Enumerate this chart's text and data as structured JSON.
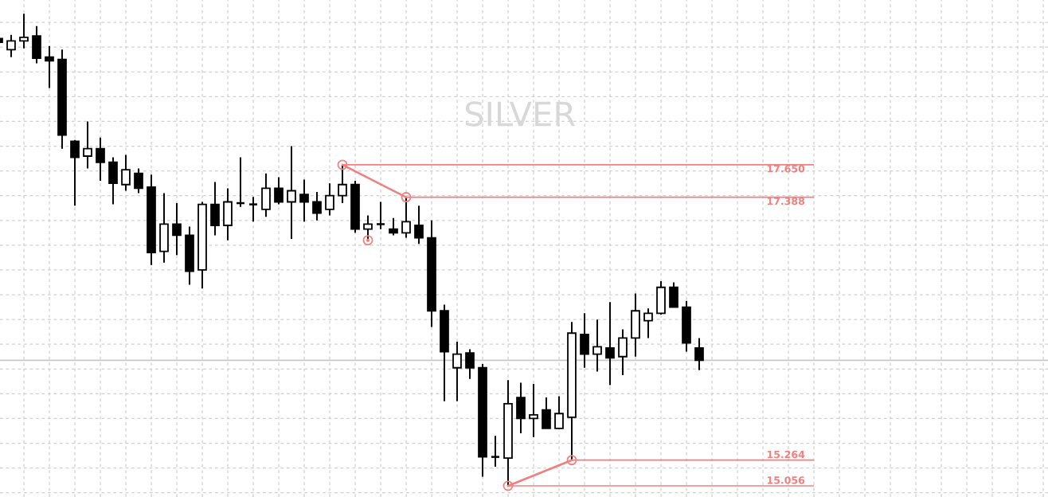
{
  "chart_data": {
    "type": "candlestick",
    "title": "SILVER",
    "categories": [
      null,
      null,
      null,
      null,
      null,
      null,
      null,
      null,
      null,
      null,
      null,
      null,
      null,
      null,
      null,
      null,
      null,
      null,
      null,
      null,
      null,
      null,
      null,
      null,
      null,
      null,
      null,
      null,
      null,
      null,
      null,
      null,
      null,
      null,
      null,
      null,
      null,
      null,
      null,
      null,
      null,
      null,
      null,
      null,
      null,
      null,
      null,
      null,
      null,
      null,
      null,
      null,
      null,
      null,
      null,
      null
    ],
    "ohlc": [
      [
        18.67,
        18.685,
        18.63,
        18.64
      ],
      [
        18.58,
        18.7,
        18.52,
        18.65
      ],
      [
        18.65,
        18.87,
        18.59,
        18.68
      ],
      [
        18.69,
        18.77,
        18.47,
        18.51
      ],
      [
        18.52,
        18.61,
        18.27,
        18.49
      ],
      [
        18.5,
        18.58,
        17.78,
        17.89
      ],
      [
        17.84,
        17.85,
        17.32,
        17.71
      ],
      [
        17.72,
        18.0,
        17.62,
        17.78
      ],
      [
        17.78,
        17.87,
        17.52,
        17.67
      ],
      [
        17.67,
        17.71,
        17.33,
        17.5
      ],
      [
        17.49,
        17.73,
        17.44,
        17.61
      ],
      [
        17.58,
        17.62,
        17.42,
        17.46
      ],
      [
        17.47,
        17.57,
        16.84,
        16.94
      ],
      [
        16.95,
        17.42,
        16.86,
        17.17
      ],
      [
        17.17,
        17.34,
        16.92,
        17.08
      ],
      [
        17.08,
        17.15,
        16.68,
        16.79
      ],
      [
        16.8,
        17.35,
        16.65,
        17.33
      ],
      [
        17.33,
        17.51,
        17.08,
        17.16
      ],
      [
        17.16,
        17.46,
        17.04,
        17.35
      ],
      [
        17.34,
        17.71,
        17.31,
        17.34
      ],
      [
        17.33,
        17.39,
        17.19,
        17.33
      ],
      [
        17.29,
        17.58,
        17.23,
        17.46
      ],
      [
        17.46,
        17.55,
        17.33,
        17.35
      ],
      [
        17.35,
        17.8,
        17.05,
        17.44
      ],
      [
        17.41,
        17.53,
        17.19,
        17.35
      ],
      [
        17.35,
        17.43,
        17.2,
        17.26
      ],
      [
        17.29,
        17.5,
        17.24,
        17.4
      ],
      [
        17.4,
        17.65,
        17.34,
        17.49
      ],
      [
        17.49,
        17.52,
        17.1,
        17.13
      ],
      [
        17.13,
        17.24,
        17.04,
        17.17
      ],
      [
        17.17,
        17.35,
        17.13,
        17.17
      ],
      [
        17.13,
        17.22,
        17.08,
        17.1
      ],
      [
        17.1,
        17.388,
        17.06,
        17.19
      ],
      [
        17.16,
        17.32,
        17.01,
        17.06
      ],
      [
        17.06,
        17.2,
        16.34,
        16.47
      ],
      [
        16.47,
        16.52,
        15.74,
        16.14
      ],
      [
        16.01,
        16.22,
        15.74,
        16.12
      ],
      [
        16.13,
        16.16,
        15.92,
        16.01
      ],
      [
        16.01,
        16.04,
        15.13,
        15.29
      ],
      [
        15.29,
        15.46,
        15.21,
        15.29
      ],
      [
        15.28,
        15.91,
        15.056,
        15.72
      ],
      [
        15.77,
        15.89,
        15.48,
        15.6
      ],
      [
        15.6,
        15.88,
        15.45,
        15.63
      ],
      [
        15.67,
        15.77,
        15.52,
        15.52
      ],
      [
        15.52,
        15.78,
        15.52,
        15.64
      ],
      [
        15.61,
        16.38,
        15.264,
        16.29
      ],
      [
        16.28,
        16.45,
        16.01,
        16.12
      ],
      [
        16.12,
        16.4,
        15.98,
        16.18
      ],
      [
        16.17,
        16.54,
        15.87,
        16.09
      ],
      [
        16.1,
        16.32,
        15.95,
        16.25
      ],
      [
        16.25,
        16.61,
        16.1,
        16.47
      ],
      [
        16.39,
        16.49,
        16.25,
        16.45
      ],
      [
        16.45,
        16.71,
        16.44,
        16.66
      ],
      [
        16.66,
        16.7,
        16.5,
        16.5
      ],
      [
        16.5,
        16.55,
        16.14,
        16.21
      ],
      [
        16.17,
        16.25,
        15.99,
        16.07
      ]
    ],
    "series": [
      {
        "type": "line",
        "color": "#f08080",
        "marker": "circle",
        "values": [
          null,
          null,
          null,
          null,
          null,
          null,
          null,
          null,
          null,
          null,
          null,
          null,
          null,
          null,
          null,
          null,
          null,
          null,
          null,
          null,
          null,
          null,
          null,
          null,
          null,
          null,
          null,
          17.65,
          null,
          null,
          null,
          null,
          17.388,
          null,
          null,
          null,
          null,
          null,
          null,
          null,
          null,
          null,
          null,
          null,
          null,
          null,
          null,
          null,
          null,
          null,
          null,
          null,
          null,
          null,
          null,
          null
        ]
      },
      {
        "type": "line",
        "color": "#f08080",
        "marker": "circle",
        "values": [
          null,
          null,
          null,
          null,
          null,
          null,
          null,
          null,
          null,
          null,
          null,
          null,
          null,
          null,
          null,
          null,
          null,
          null,
          null,
          null,
          null,
          null,
          null,
          null,
          null,
          null,
          null,
          null,
          null,
          null,
          null,
          null,
          null,
          null,
          null,
          null,
          null,
          null,
          null,
          null,
          15.056,
          null,
          null,
          null,
          null,
          15.264,
          null,
          null,
          null,
          null,
          null,
          null,
          null,
          null,
          null,
          null
        ]
      },
      {
        "type": "scatter",
        "color": "#f08080",
        "marker": "circle",
        "values": [
          null,
          null,
          null,
          null,
          null,
          null,
          null,
          null,
          null,
          null,
          null,
          null,
          null,
          null,
          null,
          null,
          null,
          null,
          null,
          null,
          null,
          null,
          null,
          null,
          null,
          null,
          null,
          null,
          null,
          17.04,
          null,
          null,
          null,
          null,
          null,
          null,
          null,
          null,
          null,
          null,
          null,
          null,
          null,
          null,
          null,
          null,
          null,
          null,
          null,
          null,
          null,
          null,
          null,
          null,
          null,
          null
        ]
      }
    ],
    "ref_lines": [
      {
        "axis": "y",
        "value": 17.65,
        "label": "17.650",
        "color": "#f08080"
      },
      {
        "axis": "y",
        "value": 17.388,
        "label": "17.388",
        "color": "#f08080"
      },
      {
        "axis": "y",
        "value": 15.264,
        "label": "15.264",
        "color": "#f08080"
      },
      {
        "axis": "y",
        "value": 15.056,
        "label": "15.056",
        "color": "#f08080"
      },
      {
        "axis": "y",
        "value": 16.07,
        "color": "#c8c8c8"
      }
    ],
    "ylim": [
      14.966,
      18.981
    ],
    "grid": true,
    "tick_labels": false
  }
}
